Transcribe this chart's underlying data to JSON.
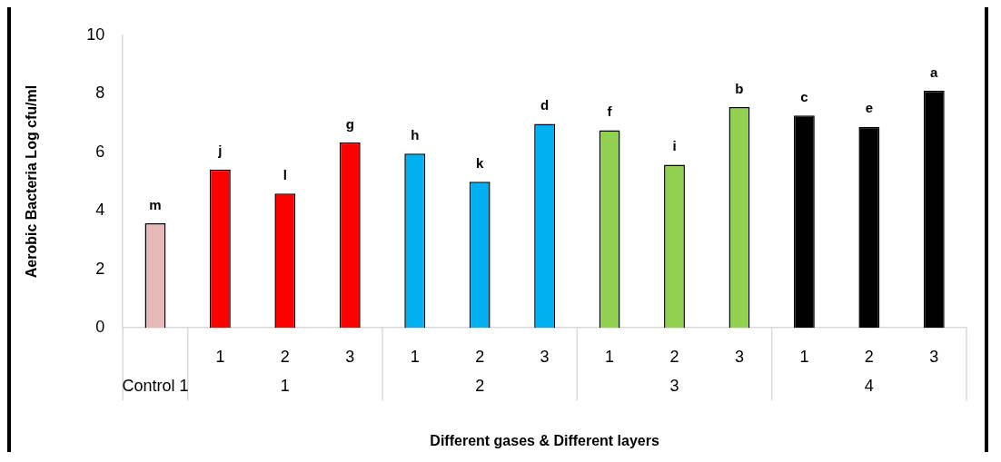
{
  "chart_data": {
    "type": "bar",
    "xlabel": "Different gases & Different layers",
    "ylabel": "Aerobic Bacteria Log cfu/ml",
    "categories": [
      null,
      "1",
      "2",
      "3",
      "1",
      "2",
      "3",
      "1",
      "2",
      "3",
      "1",
      "2",
      "3"
    ],
    "values": [
      3.57,
      5.41,
      4.59,
      6.33,
      5.95,
      4.99,
      6.97,
      6.75,
      5.57,
      7.54,
      7.26,
      6.87,
      8.1
    ],
    "colors": [
      "#e6b8b7",
      "#ff0000",
      "#ff0000",
      "#ff0000",
      "#00b0f0",
      "#00b0f0",
      "#00b0f0",
      "#92d050",
      "#92d050",
      "#92d050",
      "#000000",
      "#000000",
      "#000000"
    ],
    "value_labels": [
      "m",
      "j",
      "l",
      "g",
      "h",
      "k",
      "d",
      "f",
      "i",
      "b",
      "c",
      "e",
      "a"
    ],
    "annotations": [
      "Control 1",
      "1",
      "2",
      "3",
      "4"
    ],
    "ylim": [
      0,
      10
    ],
    "yticks": [
      0,
      2,
      4,
      6,
      8,
      10
    ],
    "grid": false,
    "legend": false
  }
}
